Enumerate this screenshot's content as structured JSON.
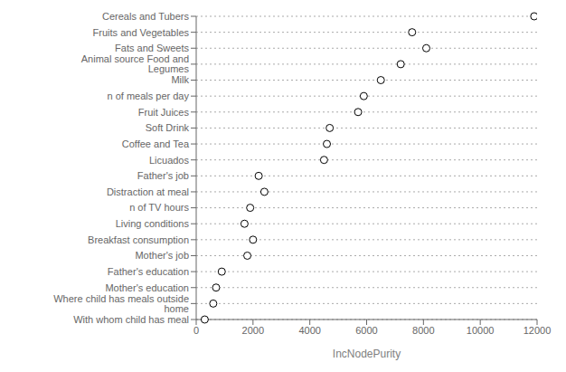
{
  "chart_data": {
    "type": "dot",
    "orientation": "horizontal",
    "categories": [
      "Cereals and Tubers",
      "Fruits and Vegetables",
      "Fats and Sweets",
      "Animal source Food and Legumes",
      "Milk",
      "n of meals per day",
      "Fruit Juices",
      "Soft Drink",
      "Coffee and Tea",
      "Licuados",
      "Father's job",
      "Distraction at meal",
      "n of TV hours",
      "Living conditions",
      "Breakfast consumption",
      "Mother's job",
      "Father's education",
      "Mother's education",
      "Where child has meals outside home",
      "With whom child has meal"
    ],
    "values": [
      11900,
      7600,
      8100,
      7200,
      6500,
      5900,
      5700,
      4700,
      4600,
      4500,
      2200,
      2400,
      1900,
      1700,
      2000,
      1800,
      900,
      700,
      600,
      300
    ],
    "xlabel": "IncNodePurity",
    "xlim": [
      0,
      12000
    ],
    "xticks": [
      0,
      2000,
      4000,
      6000,
      8000,
      10000,
      12000
    ],
    "grid": true,
    "color": "black",
    "marker": "hollow_circle"
  }
}
